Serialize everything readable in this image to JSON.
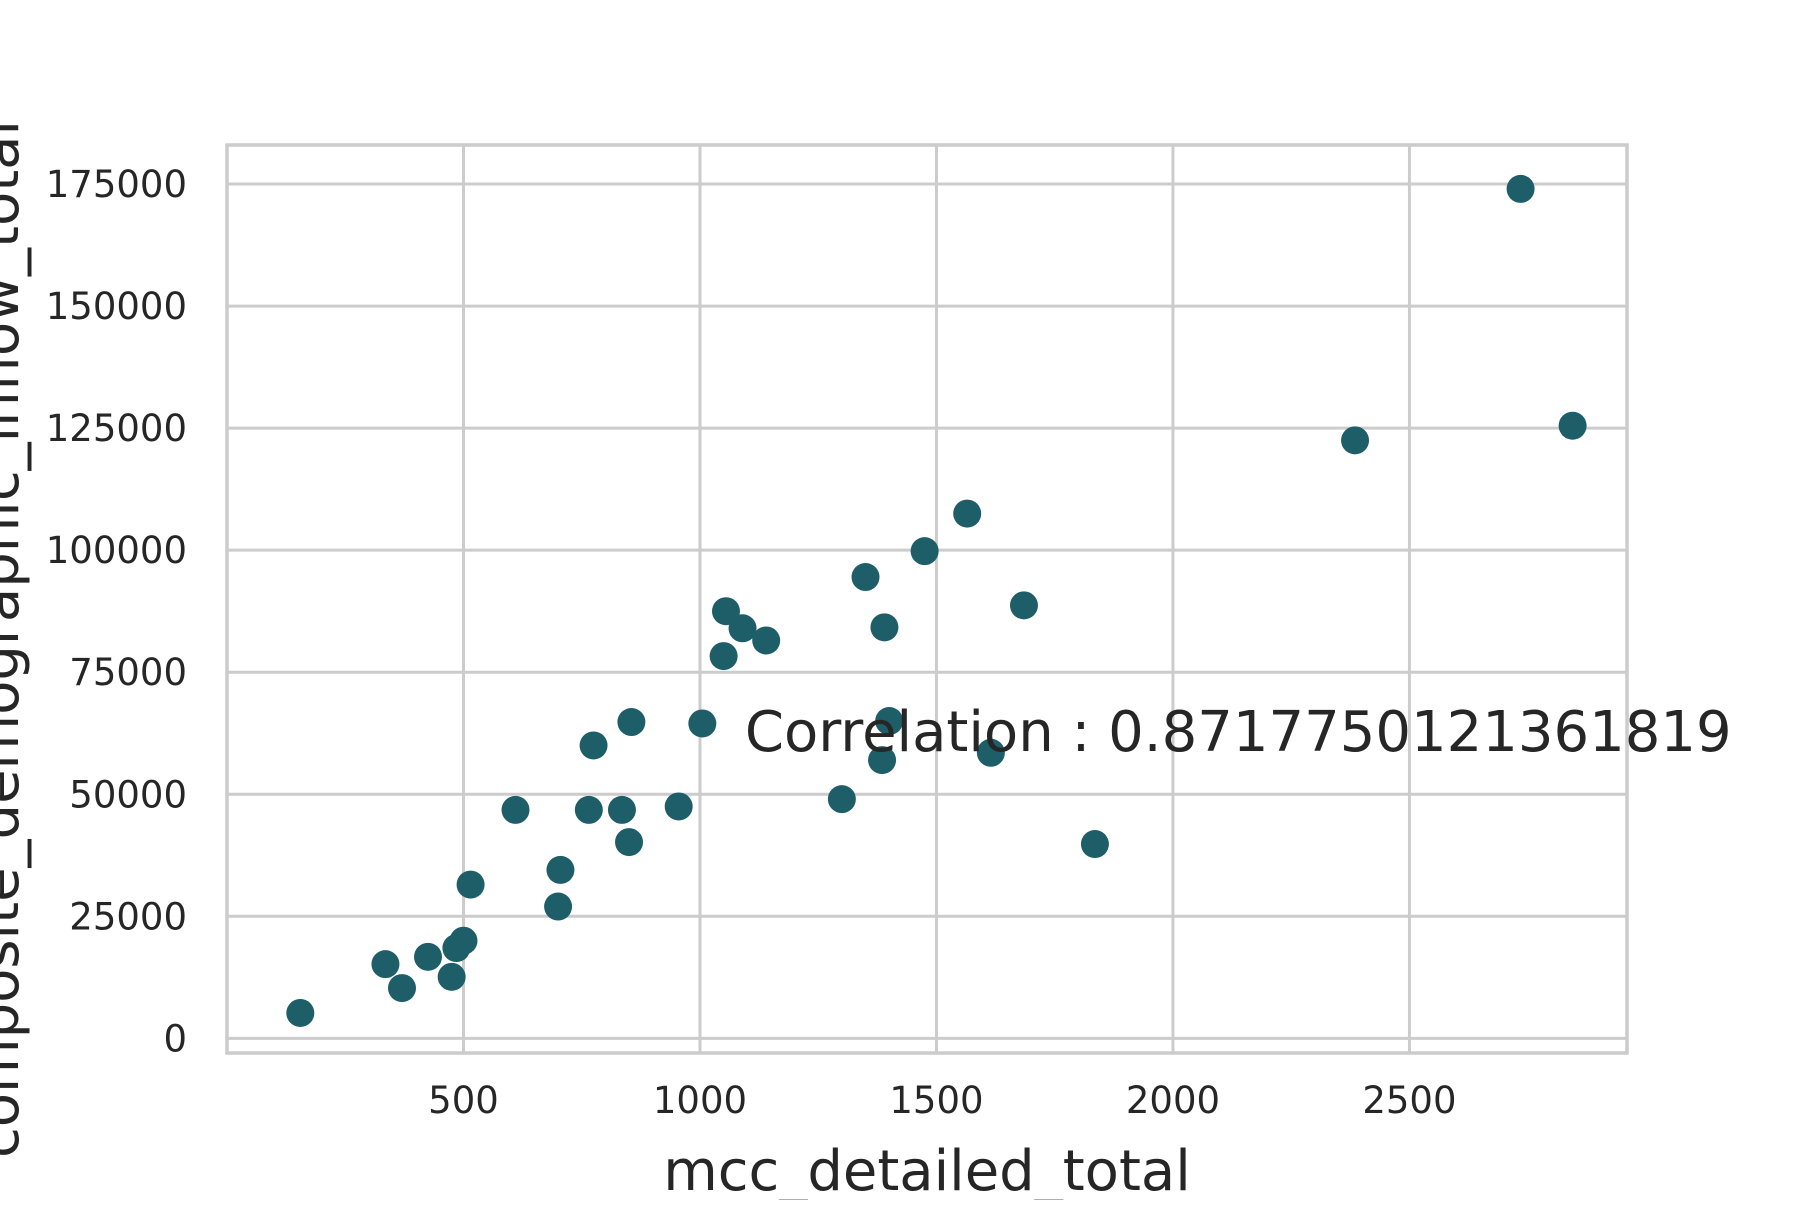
{
  "chart_data": {
    "type": "scatter",
    "xlabel": "mcc_detailed_total",
    "ylabel": "composite_demographic_inflow_total",
    "xlim": [
      0,
      2960
    ],
    "ylim": [
      -3000,
      183000
    ],
    "x_ticks": [
      500,
      1000,
      1500,
      2000,
      2500
    ],
    "y_ticks": [
      0,
      25000,
      50000,
      75000,
      100000,
      125000,
      150000,
      175000
    ],
    "grid": true,
    "marker_color": "#1d5e69",
    "annotation": {
      "text": "Correlation : 0.8717750121361819",
      "x": 1095,
      "y": 63000
    },
    "points": [
      {
        "x": 155,
        "y": 5200
      },
      {
        "x": 335,
        "y": 15200
      },
      {
        "x": 370,
        "y": 10300
      },
      {
        "x": 425,
        "y": 16700
      },
      {
        "x": 475,
        "y": 12600
      },
      {
        "x": 485,
        "y": 18500
      },
      {
        "x": 500,
        "y": 20000
      },
      {
        "x": 515,
        "y": 31500
      },
      {
        "x": 610,
        "y": 46800
      },
      {
        "x": 700,
        "y": 27000
      },
      {
        "x": 705,
        "y": 34500
      },
      {
        "x": 765,
        "y": 46800
      },
      {
        "x": 775,
        "y": 60000
      },
      {
        "x": 835,
        "y": 46800
      },
      {
        "x": 850,
        "y": 40200
      },
      {
        "x": 855,
        "y": 64800
      },
      {
        "x": 955,
        "y": 47500
      },
      {
        "x": 1005,
        "y": 64500
      },
      {
        "x": 1050,
        "y": 78300
      },
      {
        "x": 1055,
        "y": 87500
      },
      {
        "x": 1090,
        "y": 84000
      },
      {
        "x": 1140,
        "y": 81500
      },
      {
        "x": 1300,
        "y": 49000
      },
      {
        "x": 1350,
        "y": 94500
      },
      {
        "x": 1385,
        "y": 57000
      },
      {
        "x": 1390,
        "y": 84200
      },
      {
        "x": 1400,
        "y": 65000
      },
      {
        "x": 1475,
        "y": 99800
      },
      {
        "x": 1565,
        "y": 107500
      },
      {
        "x": 1615,
        "y": 58500
      },
      {
        "x": 1685,
        "y": 88700
      },
      {
        "x": 1835,
        "y": 39800
      },
      {
        "x": 2385,
        "y": 122500
      },
      {
        "x": 2735,
        "y": 174000
      },
      {
        "x": 2845,
        "y": 125500
      }
    ]
  }
}
